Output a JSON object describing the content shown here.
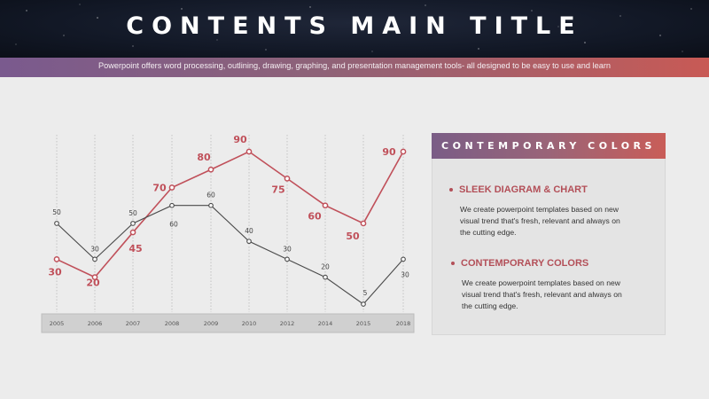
{
  "header": {
    "title": "CONTENTS MAIN TITLE",
    "subtitle": "Powerpoint offers word processing, outlining, drawing, graphing, and presentation management tools- all designed to be easy to use and learn"
  },
  "panel": {
    "title": "CONTEMPORARY COLORS",
    "items": [
      {
        "heading": "SLEEK DIAGRAM & CHART",
        "lines": [
          "We create powerpoint templates based on new",
          "visual trend that's fresh, relevant and always on",
          "the cutting edge."
        ]
      },
      {
        "heading": "CONTEMPORARY COLORS",
        "lines": [
          "We create powerpoint templates based on new",
          "visual trend that's fresh, relevant and always on",
          "the cutting edge."
        ]
      }
    ]
  },
  "colors": {
    "accent": "#c0505a",
    "dark_series": "#4a4a4a",
    "header_bg": "#121826"
  },
  "chart_data": {
    "type": "line",
    "categories": [
      "2005",
      "2006",
      "2007",
      "2008",
      "2009",
      "2010",
      "2012",
      "2014",
      "2015",
      "2018"
    ],
    "series": [
      {
        "values": [
          30,
          20,
          45,
          70,
          80,
          90,
          75,
          60,
          50,
          90
        ],
        "color": "#c0505a"
      },
      {
        "values": [
          50,
          30,
          50,
          60,
          60,
          40,
          30,
          20,
          5,
          30
        ],
        "color": "#4a4a4a"
      }
    ],
    "ylim": [
      0,
      100
    ],
    "grid": "vertical dotted"
  }
}
